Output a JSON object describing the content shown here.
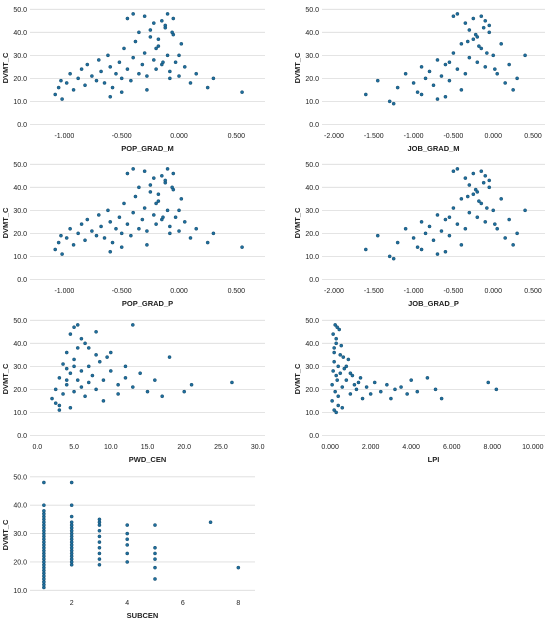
{
  "chart_data": [
    {
      "type": "scatter",
      "xlabel": "POP_GRAD_M",
      "ylabel": "DVMT_C",
      "xticks": [
        "-1.000",
        "-0.500",
        "0.000",
        "0.500"
      ],
      "yticks": [
        "0.0",
        "10.0",
        "20.0",
        "30.0",
        "40.0",
        "50.0"
      ],
      "xlim": [
        -1.3,
        0.75
      ],
      "ylim": [
        -2,
        51
      ],
      "x": [
        -1.08,
        -1.05,
        -1.03,
        -1.02,
        -0.98,
        -0.95,
        -0.92,
        -0.88,
        -0.85,
        -0.82,
        -0.8,
        -0.76,
        -0.72,
        -0.7,
        -0.68,
        -0.65,
        -0.62,
        -0.6,
        -0.58,
        -0.55,
        -0.52,
        -0.5,
        -0.48,
        -0.45,
        -0.42,
        -0.4,
        -0.38,
        -0.35,
        -0.32,
        -0.3,
        -0.28,
        -0.25,
        -0.22,
        -0.2,
        -0.18,
        -0.15,
        -0.12,
        -0.1,
        -0.08,
        -0.05,
        -0.03,
        0.0,
        0.02,
        0.05,
        0.1,
        0.15,
        0.25,
        0.3,
        0.55,
        -0.45,
        -0.4,
        -0.3,
        -0.22,
        -0.15,
        -0.1,
        -0.05,
        -0.35,
        -0.25,
        -0.18,
        -0.12,
        -0.6,
        -0.5,
        -0.28,
        -0.08,
        0.0,
        -0.2,
        -0.14,
        -0.06
      ],
      "y": [
        13,
        16,
        19,
        11,
        18,
        22,
        15,
        20,
        24,
        17,
        26,
        21,
        19,
        28,
        23,
        18,
        30,
        25,
        16,
        22,
        27,
        20,
        33,
        24,
        19,
        29,
        36,
        22,
        26,
        31,
        21,
        38,
        28,
        24,
        34,
        26,
        42,
        30,
        23,
        39,
        27,
        21,
        35,
        25,
        18,
        22,
        16,
        20,
        14,
        46,
        48,
        47,
        44,
        45,
        48,
        46,
        40,
        41,
        37,
        43,
        12,
        14,
        15,
        20,
        30,
        33,
        27,
        40
      ]
    },
    {
      "type": "scatter",
      "xlabel": "JOB_GRAD_M",
      "ylabel": "DVMT_C",
      "xticks": [
        "-2.000",
        "-1.500",
        "-1.000",
        "-0.500",
        "0.000",
        "0.500"
      ],
      "yticks": [
        "0.0",
        "10.0",
        "20.0",
        "30.0",
        "40.0",
        "50.0"
      ],
      "xlim": [
        -2.15,
        0.65
      ],
      "ylim": [
        -2,
        51
      ],
      "x": [
        -1.6,
        -1.45,
        -1.3,
        -1.2,
        -1.1,
        -1.0,
        -0.95,
        -0.9,
        -0.85,
        -0.8,
        -0.75,
        -0.7,
        -0.65,
        -0.6,
        -0.55,
        -0.5,
        -0.45,
        -0.4,
        -0.35,
        -0.3,
        -0.25,
        -0.2,
        -0.15,
        -0.1,
        -0.05,
        0.0,
        0.05,
        0.1,
        0.15,
        0.2,
        0.25,
        0.3,
        0.4,
        -0.5,
        -0.45,
        -0.35,
        -0.25,
        -0.15,
        -0.1,
        -0.05,
        -0.3,
        -0.2,
        -0.12,
        -0.6,
        -0.7,
        -0.4,
        -0.22,
        -0.08,
        0.02,
        -0.18,
        -1.25,
        -0.9,
        -0.55,
        -0.32
      ],
      "y": [
        13,
        19,
        10,
        16,
        22,
        18,
        14,
        25,
        20,
        23,
        17,
        28,
        21,
        26,
        19,
        31,
        24,
        35,
        22,
        29,
        37,
        27,
        33,
        25,
        40,
        30,
        22,
        35,
        18,
        26,
        15,
        20,
        30,
        47,
        48,
        44,
        46,
        47,
        45,
        43,
        41,
        38,
        42,
        12,
        11,
        15,
        39,
        31,
        24,
        34,
        9,
        13,
        27,
        36
      ]
    },
    {
      "type": "scatter",
      "xlabel": "POP_GRAD_P",
      "ylabel": "DVMT_C",
      "xticks": [
        "-1.000",
        "-0.500",
        "0.000",
        "0.500"
      ],
      "yticks": [
        "0.0",
        "10.0",
        "20.0",
        "30.0",
        "40.0",
        "50.0"
      ],
      "xlim": [
        -1.3,
        0.75
      ],
      "ylim": [
        -2,
        51
      ],
      "x": [
        -1.08,
        -1.05,
        -1.03,
        -1.02,
        -0.98,
        -0.95,
        -0.92,
        -0.88,
        -0.85,
        -0.82,
        -0.8,
        -0.76,
        -0.72,
        -0.7,
        -0.68,
        -0.65,
        -0.62,
        -0.6,
        -0.58,
        -0.55,
        -0.52,
        -0.5,
        -0.48,
        -0.45,
        -0.42,
        -0.4,
        -0.38,
        -0.35,
        -0.32,
        -0.3,
        -0.28,
        -0.25,
        -0.22,
        -0.2,
        -0.18,
        -0.15,
        -0.12,
        -0.1,
        -0.08,
        -0.05,
        -0.03,
        0.0,
        0.02,
        0.05,
        0.1,
        0.15,
        0.25,
        0.3,
        0.55,
        -0.45,
        -0.4,
        -0.3,
        -0.22,
        -0.15,
        -0.1,
        -0.05,
        -0.35,
        -0.25,
        -0.18,
        -0.12,
        -0.6,
        -0.5,
        -0.28,
        -0.08,
        0.0,
        -0.2,
        -0.14,
        -0.06
      ],
      "y": [
        13,
        16,
        19,
        11,
        18,
        22,
        15,
        20,
        24,
        17,
        26,
        21,
        19,
        28,
        23,
        18,
        30,
        25,
        16,
        22,
        27,
        20,
        33,
        24,
        19,
        29,
        36,
        22,
        26,
        31,
        21,
        38,
        28,
        24,
        34,
        26,
        42,
        30,
        23,
        39,
        27,
        21,
        35,
        25,
        18,
        22,
        16,
        20,
        14,
        46,
        48,
        47,
        44,
        45,
        48,
        46,
        40,
        41,
        37,
        43,
        12,
        14,
        15,
        20,
        30,
        33,
        27,
        40
      ]
    },
    {
      "type": "scatter",
      "xlabel": "JOB_GRAD_P",
      "ylabel": "DVMT_C",
      "xticks": [
        "-2.000",
        "-1.500",
        "-1.000",
        "-0.500",
        "0.000",
        "0.500"
      ],
      "yticks": [
        "0.0",
        "10.0",
        "20.0",
        "30.0",
        "40.0",
        "50.0"
      ],
      "xlim": [
        -2.15,
        0.65
      ],
      "ylim": [
        -2,
        51
      ],
      "x": [
        -1.6,
        -1.45,
        -1.3,
        -1.2,
        -1.1,
        -1.0,
        -0.95,
        -0.9,
        -0.85,
        -0.8,
        -0.75,
        -0.7,
        -0.65,
        -0.6,
        -0.55,
        -0.5,
        -0.45,
        -0.4,
        -0.35,
        -0.3,
        -0.25,
        -0.2,
        -0.15,
        -0.1,
        -0.05,
        0.0,
        0.05,
        0.1,
        0.15,
        0.2,
        0.25,
        0.3,
        0.4,
        -0.5,
        -0.45,
        -0.35,
        -0.25,
        -0.15,
        -0.1,
        -0.05,
        -0.3,
        -0.2,
        -0.12,
        -0.6,
        -0.7,
        -0.4,
        -0.22,
        -0.08,
        0.02,
        -0.18,
        -1.25,
        -0.9,
        -0.55,
        -0.32
      ],
      "y": [
        13,
        19,
        10,
        16,
        22,
        18,
        14,
        25,
        20,
        23,
        17,
        28,
        21,
        26,
        19,
        31,
        24,
        35,
        22,
        29,
        37,
        27,
        33,
        25,
        40,
        30,
        22,
        35,
        18,
        26,
        15,
        20,
        30,
        47,
        48,
        44,
        46,
        47,
        45,
        43,
        41,
        38,
        42,
        12,
        11,
        15,
        39,
        31,
        24,
        34,
        9,
        13,
        27,
        36
      ]
    },
    {
      "type": "scatter",
      "xlabel": "PWD_CEN",
      "ylabel": "DVMT_C",
      "xticks": [
        "0.0",
        "5.0",
        "10.0",
        "15.0",
        "20.0",
        "25.0",
        "30.0"
      ],
      "yticks": [
        "0.0",
        "10.0",
        "20.0",
        "30.0",
        "40.0",
        "50.0"
      ],
      "xlim": [
        -1,
        31
      ],
      "ylim": [
        -2,
        51
      ],
      "x": [
        2,
        2.5,
        3,
        3,
        3.5,
        4,
        4,
        4.5,
        4.5,
        5,
        5,
        5.5,
        5.5,
        6,
        6,
        6.5,
        7,
        7,
        7.5,
        8,
        8,
        8.5,
        9,
        9,
        10,
        10,
        11,
        11,
        12,
        12,
        13,
        14,
        15,
        16,
        17,
        18,
        20,
        21,
        26.5,
        4.5,
        5,
        5.5,
        6,
        4,
        3.5,
        6.5,
        7,
        5,
        4,
        3,
        2.5,
        8,
        9.5,
        13
      ],
      "y": [
        16,
        20,
        13,
        25,
        18,
        22,
        29,
        12,
        27,
        19,
        33,
        24,
        38,
        21,
        28,
        17,
        30,
        23,
        26,
        35,
        20,
        32,
        24,
        15,
        28,
        36,
        22,
        18,
        30,
        25,
        21,
        27,
        19,
        24,
        17,
        34,
        19,
        22,
        23,
        44,
        47,
        48,
        42,
        36,
        31,
        40,
        38,
        30,
        24,
        11,
        14,
        45,
        34,
        48
      ]
    },
    {
      "type": "scatter",
      "xlabel": "LPI",
      "ylabel": "DVMT_C",
      "xticks": [
        "0.000",
        "2.000",
        "4.000",
        "6.000",
        "8.000",
        "10.000"
      ],
      "yticks": [
        "0.0",
        "10.0",
        "20.0",
        "30.0",
        "40.0",
        "50.0"
      ],
      "xlim": [
        -0.4,
        10.6
      ],
      "ylim": [
        -2,
        51
      ],
      "x": [
        0.1,
        0.1,
        0.15,
        0.2,
        0.2,
        0.25,
        0.3,
        0.3,
        0.35,
        0.4,
        0.4,
        0.5,
        0.5,
        0.6,
        0.7,
        0.8,
        0.9,
        1.0,
        1.1,
        1.2,
        1.3,
        1.5,
        1.6,
        1.8,
        2.0,
        2.2,
        2.5,
        2.8,
        3.0,
        3.2,
        3.5,
        3.8,
        4.0,
        4.3,
        4.8,
        5.2,
        5.5,
        7.8,
        8.2,
        0.15,
        0.25,
        0.35,
        0.45,
        0.3,
        0.2,
        0.55,
        0.65,
        0.8,
        1.0,
        1.4,
        0.4,
        0.6,
        0.2,
        0.3
      ],
      "y": [
        15,
        22,
        28,
        32,
        36,
        19,
        26,
        40,
        24,
        30,
        17,
        27,
        35,
        21,
        29,
        24,
        33,
        18,
        26,
        22,
        20,
        25,
        16,
        21,
        18,
        23,
        19,
        22,
        16,
        20,
        21,
        18,
        24,
        19,
        25,
        20,
        16,
        23,
        20,
        44,
        48,
        47,
        46,
        42,
        38,
        39,
        34,
        30,
        27,
        23,
        13,
        12,
        11,
        10
      ]
    },
    {
      "type": "scatter",
      "xlabel": "SUBCEN",
      "ylabel": "DVMT_C",
      "xticks": [
        "2",
        "4",
        "6",
        "8"
      ],
      "yticks": [
        "10.0",
        "20.0",
        "30.0",
        "40.0",
        "50.0"
      ],
      "xlim": [
        0.5,
        8.6
      ],
      "ylim": [
        8,
        51
      ],
      "x": [
        1,
        1,
        1,
        1,
        1,
        1,
        1,
        1,
        1,
        1,
        1,
        1,
        1,
        1,
        1,
        1,
        1,
        1,
        1,
        1,
        1,
        1,
        1,
        1,
        1,
        1,
        1,
        1,
        1,
        1,
        2,
        2,
        2,
        2,
        2,
        2,
        2,
        2,
        2,
        2,
        2,
        2,
        2,
        2,
        2,
        2,
        2,
        2,
        2,
        3,
        3,
        3,
        3,
        3,
        3,
        3,
        3,
        3,
        3,
        4,
        4,
        4,
        4,
        4,
        4,
        5,
        5,
        5,
        5,
        5,
        5,
        7,
        8
      ],
      "y": [
        11,
        12,
        13,
        14,
        15,
        16,
        17,
        18,
        19,
        20,
        21,
        22,
        23,
        24,
        25,
        26,
        27,
        28,
        29,
        30,
        31,
        32,
        33,
        34,
        35,
        36,
        37,
        38,
        40,
        48,
        19,
        20,
        21,
        22,
        23,
        24,
        25,
        26,
        27,
        28,
        29,
        30,
        31,
        32,
        33,
        34,
        36,
        40,
        48,
        19,
        21,
        23,
        25,
        27,
        29,
        31,
        33,
        34,
        35,
        20,
        23,
        26,
        28,
        30,
        33,
        14,
        18,
        21,
        23,
        25,
        33,
        34,
        18
      ]
    }
  ]
}
